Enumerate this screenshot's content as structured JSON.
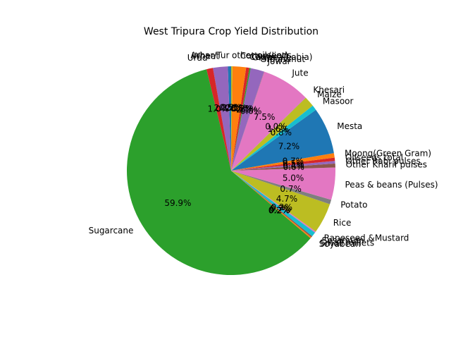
{
  "chart_data": {
    "type": "pie",
    "title": "West Tripura Crop Yield Distribution",
    "start_angle_deg": 90,
    "direction": "counterclockwise",
    "autopct_format": "0.1%",
    "slices": [
      {
        "label": "Arhar/Tur",
        "pct_label": "0.5%",
        "value": 0.5,
        "color": "#1f77b4"
      },
      {
        "label": "Wheat",
        "pct_label": "2.3%",
        "value": 2.3,
        "color": "#9467bd"
      },
      {
        "label": "Urad",
        "pct_label": "1.0%",
        "value": 1.0,
        "color": "#d62728"
      },
      {
        "label": "Sugarcane",
        "pct_label": "59.9%",
        "value": 59.9,
        "color": "#2ca02c"
      },
      {
        "label": "Soyabean",
        "pct_label": "0.2%",
        "value": 0.2,
        "color": "#ff7f0e"
      },
      {
        "label": "Small millets",
        "pct_label": "0.2%",
        "value": 0.2,
        "color": "#8c564b"
      },
      {
        "label": "Sesamum",
        "pct_label": "0.7%",
        "value": 0.7,
        "color": "#17becf"
      },
      {
        "label": "Rapeseed &Mustard",
        "pct_label": "0.2%",
        "value": 0.2,
        "color": "#e377c2"
      },
      {
        "label": "Rice",
        "pct_label": "4.7%",
        "value": 4.7,
        "color": "#bcbd22"
      },
      {
        "label": "Potato",
        "pct_label": "0.7%",
        "value": 0.7,
        "color": "#7f7f7f"
      },
      {
        "label": "Peas & beans (Pulses)",
        "pct_label": "5.0%",
        "value": 5.0,
        "color": "#e377c2"
      },
      {
        "label": "Other Kharif pulses",
        "pct_label": "0.6%",
        "value": 0.6,
        "color": "#8c564b"
      },
      {
        "label": "Other Rabi pulses",
        "pct_label": "0.4%",
        "value": 0.4,
        "color": "#9467bd"
      },
      {
        "label": "Oilseeds total",
        "pct_label": "0.5%",
        "value": 0.5,
        "color": "#d62728"
      },
      {
        "label": "Moong(Green Gram)",
        "pct_label": "0.7%",
        "value": 0.7,
        "color": "#ff7f0e"
      },
      {
        "label": "Mesta",
        "pct_label": "7.2%",
        "value": 7.2,
        "color": "#1f77b4"
      },
      {
        "label": "Masoor",
        "pct_label": "0.8%",
        "value": 0.8,
        "color": "#17becf"
      },
      {
        "label": "Maize",
        "pct_label": "1.6%",
        "value": 1.6,
        "color": "#bcbd22"
      },
      {
        "label": "Khesari",
        "pct_label": "0.0%",
        "value": 0.04,
        "color": "#7f7f7f"
      },
      {
        "label": "Jute",
        "pct_label": "7.5%",
        "value": 7.5,
        "color": "#e377c2"
      },
      {
        "label": "Jowar",
        "pct_label": "0.0%",
        "value": 0.04,
        "color": "#8c564b"
      },
      {
        "label": "Groundnut",
        "pct_label": "2.1%",
        "value": 2.1,
        "color": "#9467bd"
      },
      {
        "label": "Gram",
        "pct_label": "0.2%",
        "value": 0.2,
        "color": "#2ca02c"
      },
      {
        "label": "Cowpea(Lobia)",
        "pct_label": "0.5%",
        "value": 0.5,
        "color": "#d62728"
      },
      {
        "label": "Cotton(lint)",
        "pct_label": "2.1%",
        "value": 2.1,
        "color": "#ff7f0e"
      },
      {
        "label": "other oilseeds",
        "pct_label": "0.2%",
        "value": 0.2,
        "color": "#bcbd22"
      }
    ]
  }
}
